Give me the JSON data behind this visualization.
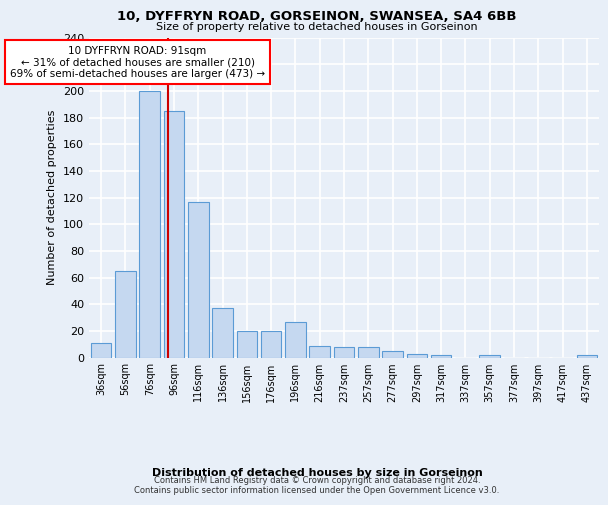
{
  "title": "10, DYFFRYN ROAD, GORSEINON, SWANSEA, SA4 6BB",
  "subtitle": "Size of property relative to detached houses in Gorseinon",
  "xlabel": "Distribution of detached houses by size in Gorseinon",
  "ylabel": "Number of detached properties",
  "bar_color": "#c5d8f0",
  "bar_edge_color": "#5b9bd5",
  "categories": [
    "36sqm",
    "56sqm",
    "76sqm",
    "96sqm",
    "116sqm",
    "136sqm",
    "156sqm",
    "176sqm",
    "196sqm",
    "216sqm",
    "237sqm",
    "257sqm",
    "277sqm",
    "297sqm",
    "317sqm",
    "337sqm",
    "357sqm",
    "377sqm",
    "397sqm",
    "417sqm",
    "437sqm"
  ],
  "values": [
    11,
    65,
    200,
    185,
    117,
    37,
    20,
    20,
    27,
    9,
    8,
    8,
    5,
    3,
    2,
    0,
    2,
    0,
    0,
    0,
    2
  ],
  "annotation_text": "10 DYFFRYN ROAD: 91sqm\n← 31% of detached houses are smaller (210)\n69% of semi-detached houses are larger (473) →",
  "annotation_box_color": "white",
  "annotation_box_edge_color": "red",
  "red_line_color": "#cc0000",
  "ylim": [
    0,
    240
  ],
  "yticks": [
    0,
    20,
    40,
    60,
    80,
    100,
    120,
    140,
    160,
    180,
    200,
    220,
    240
  ],
  "footer_line1": "Contains HM Land Registry data © Crown copyright and database right 2024.",
  "footer_line2": "Contains public sector information licensed under the Open Government Licence v3.0.",
  "background_color": "#e8eff8",
  "grid_color": "white"
}
